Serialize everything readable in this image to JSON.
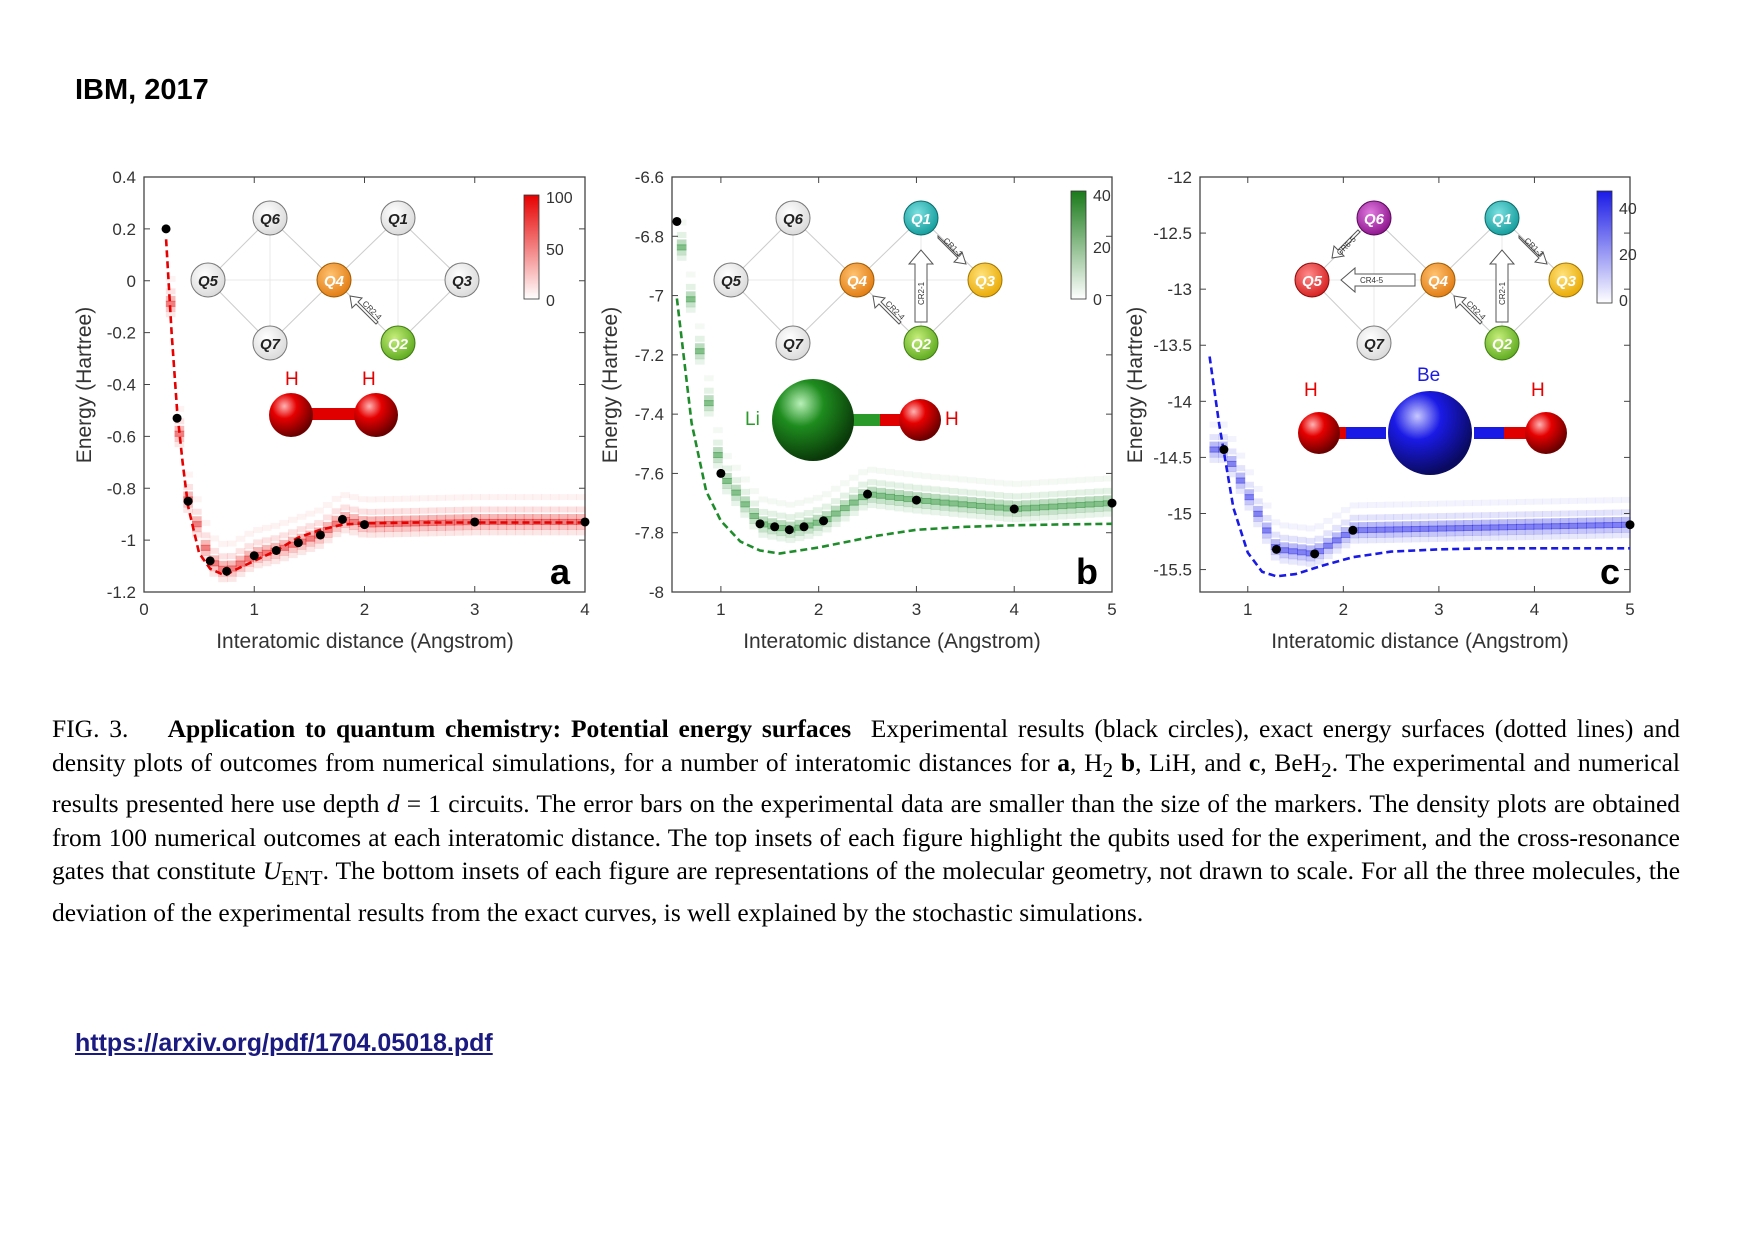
{
  "slide_title": "IBM, 2017",
  "source_link": "https://arxiv.org/pdf/1704.05018.pdf",
  "caption": {
    "label": "FIG. 3.",
    "heading": "Application to quantum chemistry: Potential energy surfaces",
    "t1": "Experimental results (black circles), exact energy surfaces (dotted lines) and density plots of outcomes from numerical simulations, for a number of interatomic distances for",
    "a": "a",
    "t2": ", H",
    "s2": "2",
    "b": "b",
    "t3": ", LiH, and",
    "c": "c",
    "t4": ", BeH",
    "s4": "2",
    "t5": ". The experimental and numerical results presented here use depth",
    "d": "d",
    "t6": "= 1 circuits. The error bars on the experimental data are smaller than the size of the markers. The density plots are obtained from 100 numerical outcomes at each interatomic distance. The top insets of each figure highlight the qubits used for the experiment, and the cross-resonance gates that constitute",
    "U": "U",
    "ENT": "ENT",
    "t7": ". The bottom insets of each figure are representations of the molecular geometry, not drawn to scale. For all the three molecules, the deviation of the experimental results from the exact curves, is well explained by the stochastic simulations."
  },
  "colors": {
    "red": "#e60000",
    "green": "#1e8c2a",
    "blue": "#1a1ae6",
    "link": "#1a1a80"
  },
  "chart_data": [
    {
      "type": "scatter",
      "panel_label": "a",
      "molecule": "H2",
      "xlabel": "Interatomic distance (Angstrom)",
      "ylabel": "Energy (Hartree)",
      "xlim": [
        0,
        4
      ],
      "ylim": [
        -1.2,
        0.4
      ],
      "xticks": [
        "0",
        "1",
        "2",
        "3",
        "4"
      ],
      "yticks": [
        "0.4",
        "0.2",
        "0",
        "-0.2",
        "-0.4",
        "-0.6",
        "-0.8",
        "-1",
        "-1.2"
      ],
      "colorbar": {
        "ticks": [
          "100",
          "50",
          "0"
        ],
        "max": 100
      },
      "exact_curve": {
        "x": [
          0.2,
          0.25,
          0.3,
          0.35,
          0.4,
          0.5,
          0.6,
          0.7,
          0.74,
          0.8,
          0.9,
          1.0,
          1.2,
          1.4,
          1.6,
          1.8,
          2.0,
          2.5,
          3.0,
          3.5,
          4.0
        ],
        "y": [
          0.16,
          -0.2,
          -0.5,
          -0.7,
          -0.87,
          -1.05,
          -1.11,
          -1.13,
          -1.135,
          -1.12,
          -1.1,
          -1.08,
          -1.04,
          -0.99,
          -0.96,
          -0.94,
          -0.935,
          -0.932,
          -0.932,
          -0.932,
          -0.932
        ]
      },
      "experimental": {
        "x": [
          0.2,
          0.3,
          0.4,
          0.6,
          0.75,
          1.0,
          1.2,
          1.4,
          1.6,
          1.8,
          2.0,
          3.0,
          4.0
        ],
        "y": [
          0.2,
          -0.53,
          -0.85,
          -1.08,
          -1.12,
          -1.06,
          -1.04,
          -1.01,
          -0.98,
          -0.92,
          -0.94,
          -0.93,
          -0.93
        ]
      },
      "inset_qubits": [
        "Q6",
        "Q1",
        "Q5",
        "Q4",
        "Q3",
        "Q7",
        "Q2"
      ],
      "inset_gates": [
        "CR2-4"
      ],
      "atoms": [
        "H",
        "H"
      ]
    },
    {
      "type": "scatter",
      "panel_label": "b",
      "molecule": "LiH",
      "xlabel": "Interatomic distance (Angstrom)",
      "ylabel": "Energy (Hartree)",
      "xlim": [
        0.5,
        5
      ],
      "ylim": [
        -8,
        -6.6
      ],
      "xticks": [
        "1",
        "2",
        "3",
        "4",
        "5"
      ],
      "yticks": [
        "-6.6",
        "-6.8",
        "-7",
        "-7.2",
        "-7.4",
        "-7.6",
        "-7.8",
        "-8"
      ],
      "colorbar": {
        "ticks": [
          "40",
          "20",
          "0"
        ],
        "max": 40
      },
      "exact_curve": {
        "x": [
          0.55,
          0.7,
          0.85,
          1.0,
          1.2,
          1.4,
          1.6,
          1.8,
          2.0,
          2.3,
          2.6,
          3.0,
          3.5,
          4.0,
          4.5,
          5.0
        ],
        "y": [
          -7.01,
          -7.43,
          -7.66,
          -7.76,
          -7.83,
          -7.86,
          -7.87,
          -7.86,
          -7.85,
          -7.83,
          -7.81,
          -7.79,
          -7.78,
          -7.775,
          -7.772,
          -7.77
        ]
      },
      "experimental": {
        "x": [
          0.55,
          1.0,
          1.4,
          1.55,
          1.7,
          1.85,
          2.05,
          2.5,
          3.0,
          4.0,
          5.0
        ],
        "y": [
          -6.75,
          -7.6,
          -7.77,
          -7.78,
          -7.79,
          -7.78,
          -7.76,
          -7.67,
          -7.69,
          -7.72,
          -7.7
        ]
      },
      "inset_qubits": [
        "Q6",
        "Q1",
        "Q5",
        "Q4",
        "Q3",
        "Q7",
        "Q2"
      ],
      "inset_gates": [
        "CR1-3",
        "CR2-4",
        "CR2-1"
      ],
      "atoms": [
        "Li",
        "H"
      ]
    },
    {
      "type": "scatter",
      "panel_label": "c",
      "molecule": "BeH2",
      "xlabel": "Interatomic distance (Angstrom)",
      "ylabel": "Energy (Hartree)",
      "xlim": [
        0.5,
        5
      ],
      "ylim": [
        -15.7,
        -12
      ],
      "xticks": [
        "1",
        "2",
        "3",
        "4",
        "5"
      ],
      "yticks": [
        "-12",
        "-12.5",
        "-13",
        "-13.5",
        "-14",
        "-14.5",
        "-15",
        "-15.5"
      ],
      "colorbar": {
        "ticks": [
          "40",
          "20",
          "0"
        ],
        "max": 40
      },
      "exact_curve": {
        "x": [
          0.6,
          0.7,
          0.85,
          1.0,
          1.15,
          1.3,
          1.5,
          1.8,
          2.1,
          2.5,
          3.0,
          3.5,
          4.0,
          4.5,
          5.0
        ],
        "y": [
          -13.6,
          -14.2,
          -14.95,
          -15.35,
          -15.52,
          -15.56,
          -15.54,
          -15.46,
          -15.39,
          -15.34,
          -15.32,
          -15.31,
          -15.31,
          -15.31,
          -15.31
        ]
      },
      "experimental": {
        "x": [
          0.75,
          1.3,
          1.7,
          2.1,
          5.0
        ],
        "y": [
          -14.43,
          -15.32,
          -15.36,
          -15.15,
          -15.1
        ]
      },
      "inset_qubits": [
        "Q6",
        "Q1",
        "Q5",
        "Q4",
        "Q3",
        "Q7",
        "Q2"
      ],
      "inset_gates": [
        "CR6-5",
        "CR1-3",
        "CR4-5",
        "CR2-1",
        "CR2-4"
      ],
      "atoms": [
        "H",
        "Be",
        "H"
      ]
    }
  ]
}
